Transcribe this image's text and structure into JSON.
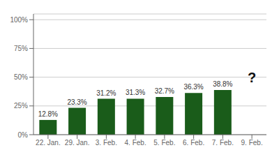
{
  "chart_data": {
    "type": "bar",
    "categories": [
      "22. Jan.",
      "29. Jan.",
      "3. Feb.",
      "4. Feb.",
      "5. Feb.",
      "6. Feb.",
      "7. Feb.",
      "9. Feb."
    ],
    "values": [
      12.8,
      23.3,
      31.2,
      31.3,
      32.7,
      36.3,
      38.8,
      null
    ],
    "value_labels": [
      "12.8%",
      "23.3%",
      "31.2%",
      "31.3%",
      "32.7%",
      "36.3%",
      "38.8%",
      null
    ],
    "data_labels": true,
    "color": "#1a5c1a",
    "ylim": [
      0,
      105
    ],
    "yticks": [
      {
        "value": 0,
        "label": "0%"
      },
      {
        "value": 25,
        "label": "25%"
      },
      {
        "value": 50,
        "label": "50%"
      },
      {
        "value": 75,
        "label": "75%"
      },
      {
        "value": 100,
        "label": "100%"
      }
    ],
    "grid": true,
    "annotations": [
      {
        "text": "?",
        "x": "9. Feb.",
        "y": 50
      }
    ]
  }
}
